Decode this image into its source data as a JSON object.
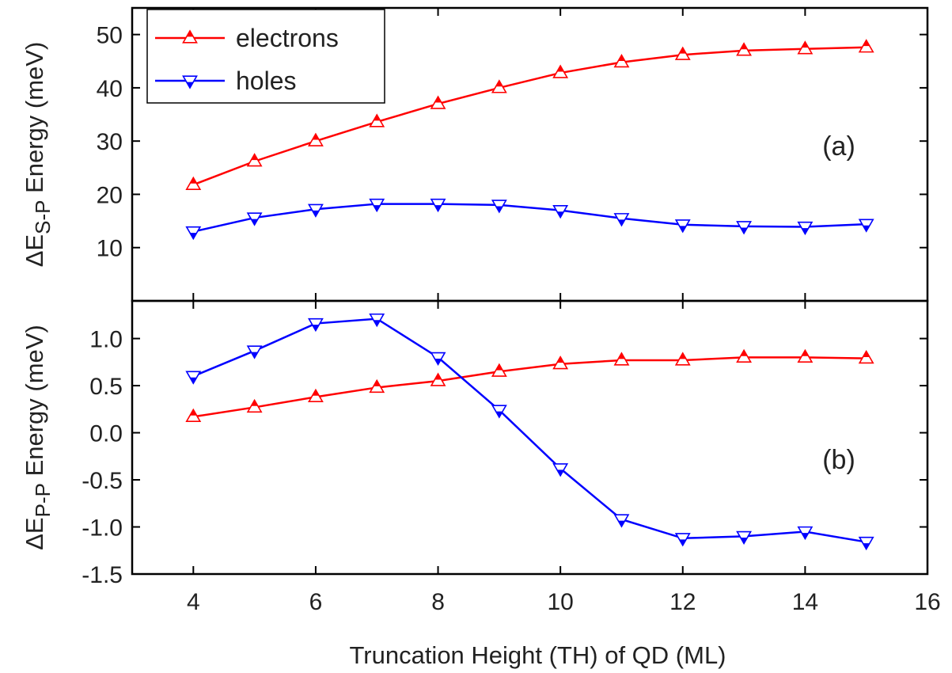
{
  "chart_data": {
    "type": "line",
    "xlabel": "Truncation Height (TH) of QD (ML)",
    "xlim": [
      3,
      16
    ],
    "xticks": [
      4,
      6,
      8,
      10,
      12,
      14,
      16
    ],
    "legend": {
      "placement": "top-left",
      "entries": [
        "electrons",
        "holes"
      ]
    },
    "colors": {
      "electrons": "#ff0000",
      "holes": "#0000ff"
    },
    "panels": [
      {
        "panel_label": "(a)",
        "ylabel": {
          "prefix": "ΔE",
          "subscript": "S-P",
          "suffix": " Energy (meV)"
        },
        "ylim": [
          0,
          55
        ],
        "yticks": [
          10,
          20,
          30,
          40,
          50
        ],
        "x": [
          4,
          5,
          6,
          7,
          8,
          9,
          10,
          11,
          12,
          13,
          14,
          15
        ],
        "series": [
          {
            "name": "electrons",
            "marker": "triangle-up",
            "values": [
              21.8,
              26.2,
              30.0,
              33.6,
              37.0,
              40.0,
              42.8,
              44.8,
              46.2,
              47.0,
              47.3,
              47.6
            ]
          },
          {
            "name": "holes",
            "marker": "triangle-down",
            "values": [
              13.0,
              15.6,
              17.2,
              18.2,
              18.2,
              18.0,
              17.0,
              15.5,
              14.3,
              14.0,
              13.9,
              14.4
            ]
          }
        ]
      },
      {
        "panel_label": "(b)",
        "ylabel": {
          "prefix": "ΔE",
          "subscript": "P-P",
          "suffix": " Energy (meV)"
        },
        "ylim": [
          -1.5,
          1.4
        ],
        "yticks": [
          -1.5,
          -1.0,
          -0.5,
          0.0,
          0.5,
          1.0
        ],
        "ytick_labels": [
          "-1.5",
          "-1.0",
          "-0.5",
          "0.0",
          "0.5",
          "1.0"
        ],
        "x": [
          4,
          5,
          6,
          7,
          8,
          9,
          10,
          11,
          12,
          13,
          14,
          15
        ],
        "series": [
          {
            "name": "electrons",
            "marker": "triangle-up",
            "values": [
              0.17,
              0.27,
              0.38,
              0.48,
              0.55,
              0.65,
              0.73,
              0.77,
              0.77,
              0.8,
              0.8,
              0.79
            ]
          },
          {
            "name": "holes",
            "marker": "triangle-down",
            "values": [
              0.6,
              0.87,
              1.16,
              1.21,
              0.8,
              0.24,
              -0.38,
              -0.92,
              -1.12,
              -1.1,
              -1.05,
              -1.16
            ]
          }
        ]
      }
    ]
  }
}
